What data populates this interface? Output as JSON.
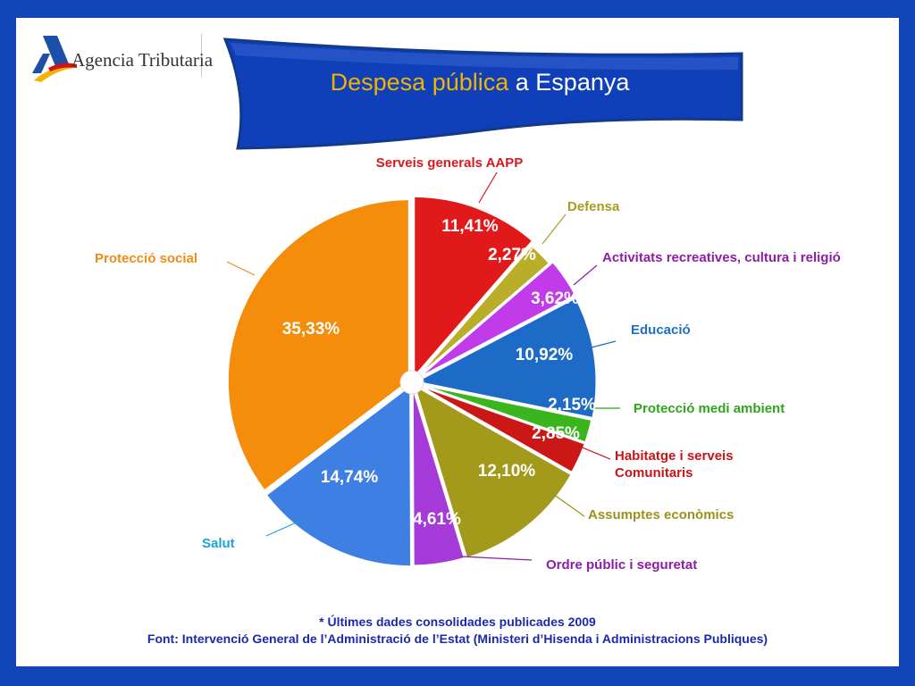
{
  "header": {
    "logo_text": "Agencia Tributaria",
    "title_part1": "Despesa pública",
    "title_part2": "a Espanya"
  },
  "colors": {
    "frame": "#1246b8",
    "banner": "#0f3fb9",
    "title_accent": "#f0b400",
    "footer": "#1a2aa8"
  },
  "chart_data": {
    "type": "pie",
    "slices": [
      {
        "label": "Serveis generals AAPP",
        "value": 11.41,
        "value_label": "11,41%",
        "color": "#e2191b",
        "label_color": "#d71920"
      },
      {
        "label": "Defensa",
        "value": 2.27,
        "value_label": "2,27%",
        "color": "#b9ad2a",
        "label_color": "#a89c1e"
      },
      {
        "label": "Activitats recreatives, cultura i religió",
        "value": 3.62,
        "value_label": "3,62%",
        "color": "#c23be8",
        "label_color": "#8e1ea6"
      },
      {
        "label": "Educació",
        "value": 10.92,
        "value_label": "10,92%",
        "color": "#1d6ac7",
        "label_color": "#1f6fc6"
      },
      {
        "label": "Protecció medi ambient",
        "value": 2.15,
        "value_label": "2,15%",
        "color": "#3ab51e",
        "label_color": "#2da61c"
      },
      {
        "label": "Habitatge i serveis Comunitaris",
        "value": 2.85,
        "value_label": "2,85%",
        "color": "#cc1717",
        "label_color": "#c8141a"
      },
      {
        "label": "Assumptes econòmics",
        "value": 12.1,
        "value_label": "12,10%",
        "color": "#a39a1c",
        "label_color": "#9c9219"
      },
      {
        "label": "Ordre públic i seguretat",
        "value": 4.61,
        "value_label": "4,61%",
        "color": "#a63ad8",
        "label_color": "#8c1da6"
      },
      {
        "label": "Salut",
        "value": 14.74,
        "value_label": "14,74%",
        "color": "#3e7fe4",
        "label_color": "#1aa3d6"
      },
      {
        "label": "Protecció social",
        "value": 35.33,
        "value_label": "35,33%",
        "color": "#f48c0c",
        "label_color": "#f08c16"
      }
    ]
  },
  "footer": {
    "note": "* Últimes dades consolidades publicades 2009",
    "source": "Font: Intervenció General de l’Administració de l’Estat (Ministeri d’Hisenda i Administracions Publiques)"
  }
}
